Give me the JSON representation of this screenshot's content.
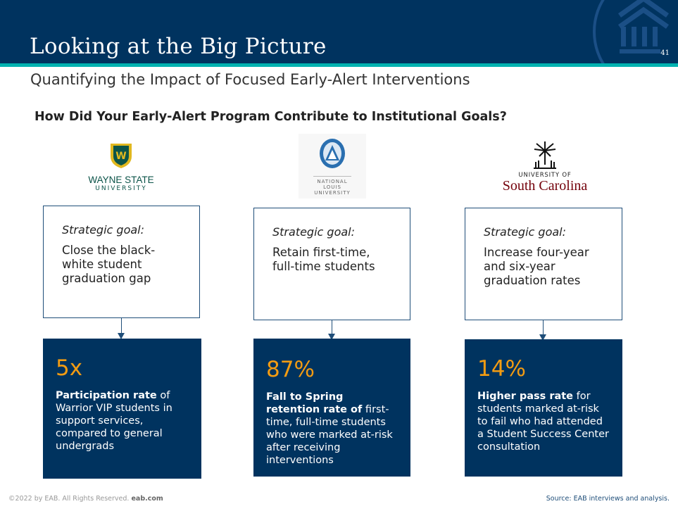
{
  "header": {
    "title": "Looking at the Big Picture",
    "page_number": "41"
  },
  "subtitle": "Quantifying the Impact of Focused Early-Alert Interventions",
  "question": "How Did Your Early-Alert Program Contribute to Institutional Goals?",
  "colors": {
    "navy": "#00335f",
    "teal": "#00b2b0",
    "orange": "#f39c12"
  },
  "columns": [
    {
      "logo": {
        "line1": "WAYNE STATE",
        "line2": "UNIVERSITY"
      },
      "goal_label": "Strategic goal:",
      "goal_text": "Close the black-white student graduation gap",
      "stat": "5x",
      "desc_bold": "Participation rate",
      "desc_rest": " of Warrior VIP students in support services, compared to general undergrads"
    },
    {
      "logo": {
        "line1": "NATIONAL",
        "line2": "LOUIS",
        "line3": "UNIVERSITY"
      },
      "goal_label": "Strategic goal:",
      "goal_text": "Retain first-time, full-time students",
      "stat": "87%",
      "desc_bold": "Fall to Spring retention rate of",
      "desc_rest": " first-time, full-time students who were marked at-risk after receiving interventions"
    },
    {
      "logo": {
        "line1": "UNIVERSITY OF",
        "line2": "South Carolina"
      },
      "goal_label": "Strategic goal:",
      "goal_text": "Increase four-year and six-year graduation rates",
      "stat": "14%",
      "desc_bold": "Higher pass rate",
      "desc_rest": " for students marked at-risk to fail who had attended a Student Success Center consultation"
    }
  ],
  "footer": {
    "copyright": "©2022 by EAB. All Rights Reserved.",
    "site": "eab.com",
    "source": "Source: EAB interviews and analysis."
  }
}
